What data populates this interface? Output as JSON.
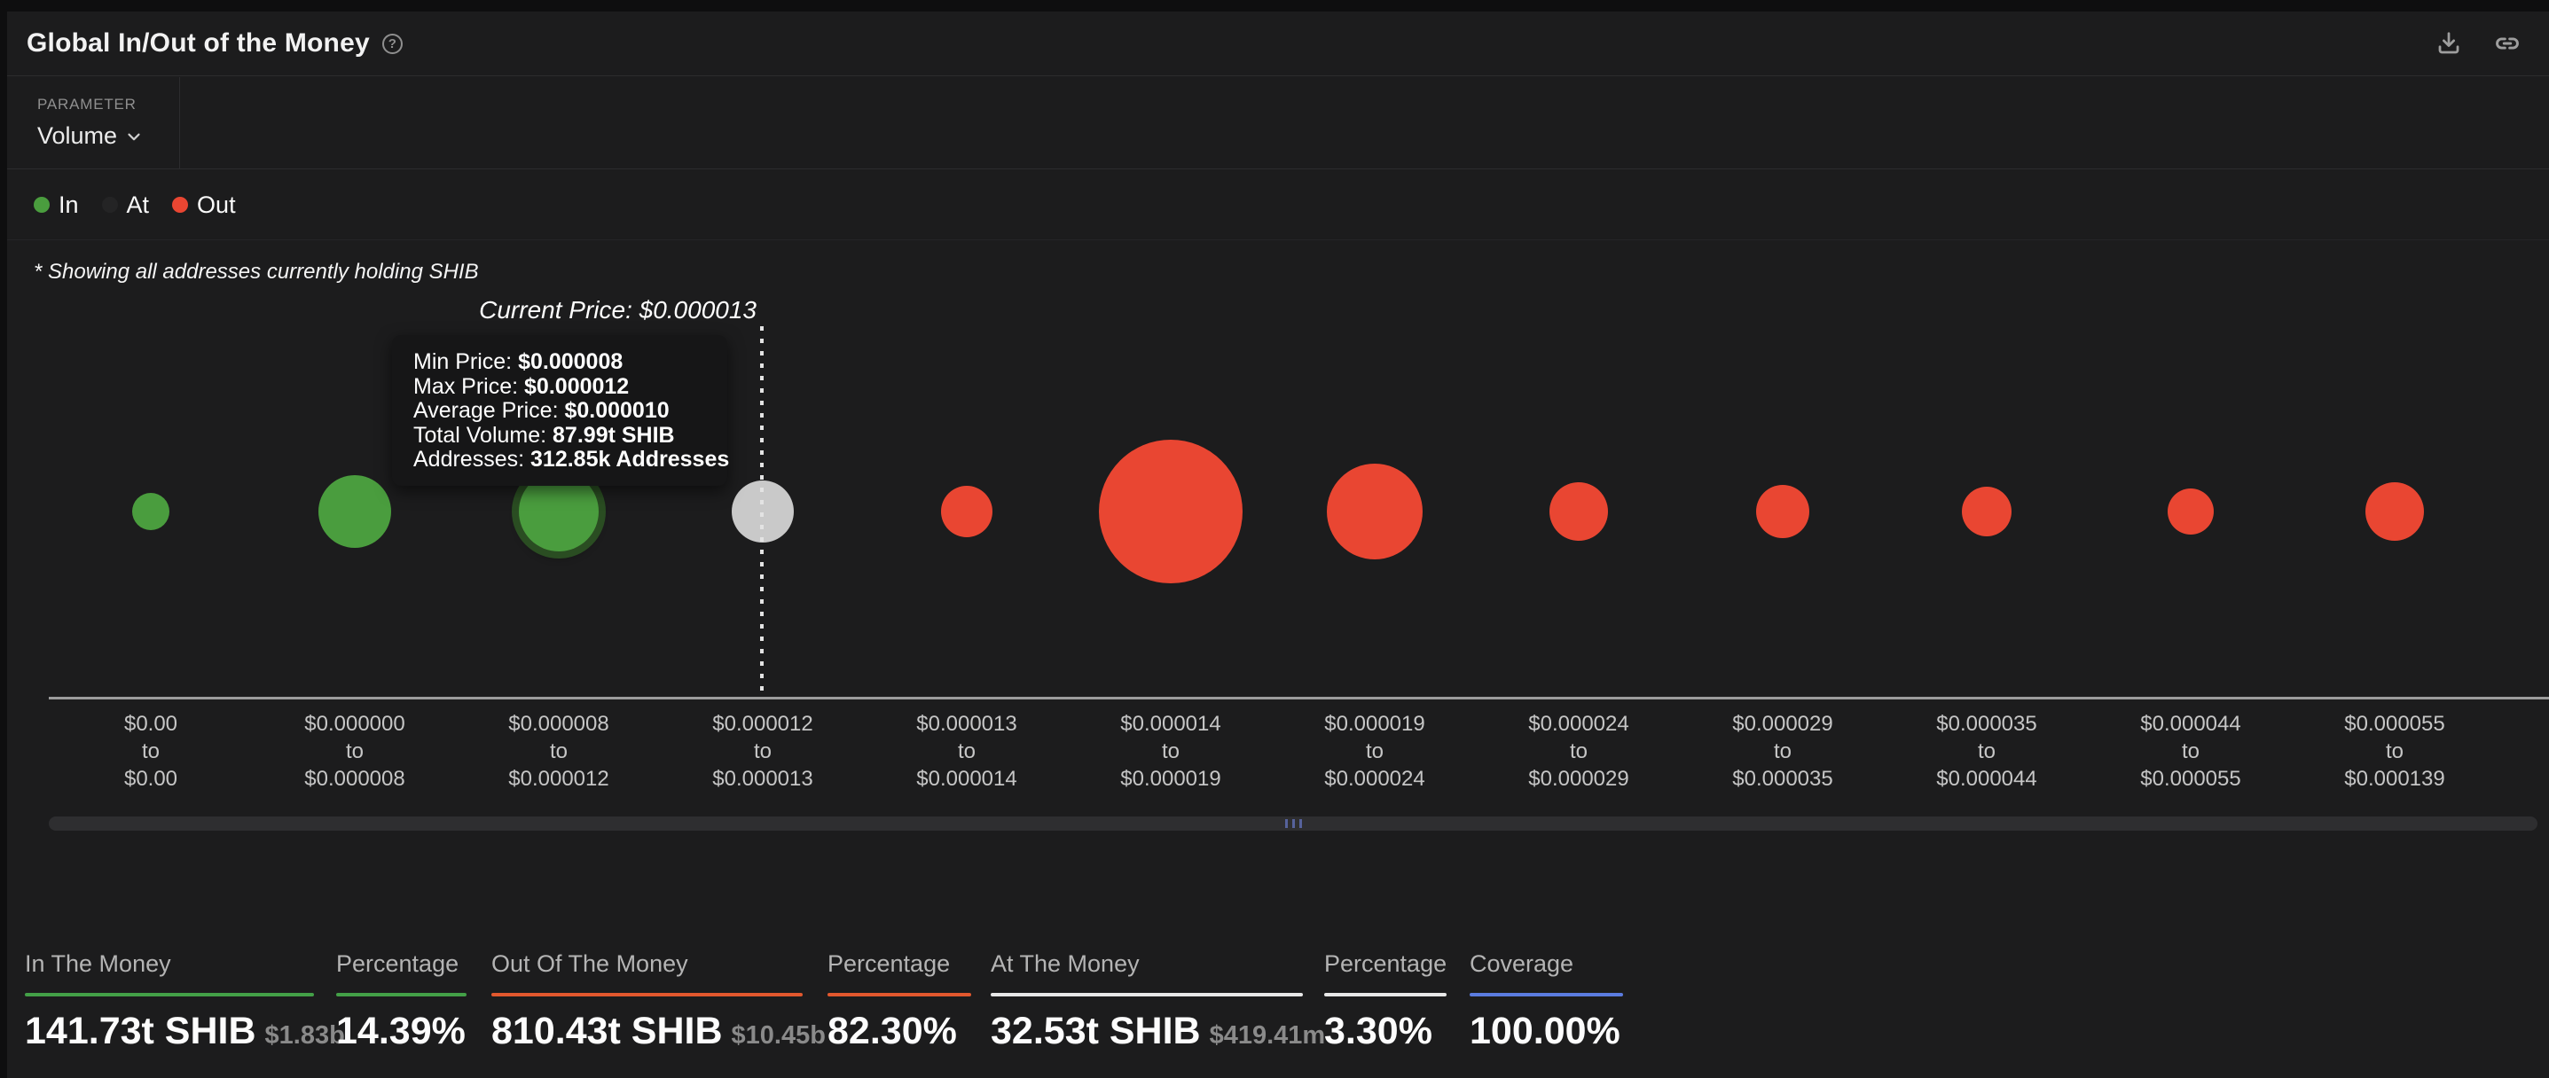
{
  "header": {
    "title": "Global In/Out of the Money"
  },
  "icons": {
    "help": "help-icon",
    "download": "download-icon",
    "link": "link-icon",
    "chevron": "chevron-down-icon",
    "grip": "scrollbar-grip"
  },
  "parameter": {
    "label": "PARAMETER",
    "value": "Volume"
  },
  "legend": {
    "items": [
      {
        "label": "In",
        "dot_color": "#4a9d3e"
      },
      {
        "label": "At",
        "dot_color": "#242425"
      },
      {
        "label": "Out",
        "dot_color": "#e94632"
      }
    ]
  },
  "footnote": "* Showing all addresses currently holding SHIB",
  "chart_data": {
    "type": "bubble",
    "title": "Global In/Out of the Money",
    "parameter": "Volume",
    "asset": "SHIB",
    "legend": [
      "In",
      "At",
      "Out"
    ],
    "current_price": "$0.000013",
    "current_price_label": "Current Price: $0.000013",
    "x_axis_connector": "to",
    "status_colors": {
      "in": "#4a9d3e",
      "at": "#c9c9c9",
      "out": "#e94632"
    },
    "bubbles": [
      {
        "range_from": "$0.00",
        "range_to": "$0.00",
        "status": "in",
        "radius": 21,
        "hovered": false
      },
      {
        "range_from": "$0.000000",
        "range_to": "$0.000008",
        "status": "in",
        "radius": 41,
        "hovered": false
      },
      {
        "range_from": "$0.000008",
        "range_to": "$0.000012",
        "status": "in",
        "radius": 45,
        "hovered": true
      },
      {
        "range_from": "$0.000012",
        "range_to": "$0.000013",
        "status": "at",
        "radius": 35,
        "hovered": false
      },
      {
        "range_from": "$0.000013",
        "range_to": "$0.000014",
        "status": "out",
        "radius": 29,
        "hovered": false
      },
      {
        "range_from": "$0.000014",
        "range_to": "$0.000019",
        "status": "out",
        "radius": 81,
        "hovered": false
      },
      {
        "range_from": "$0.000019",
        "range_to": "$0.000024",
        "status": "out",
        "radius": 54,
        "hovered": false
      },
      {
        "range_from": "$0.000024",
        "range_to": "$0.000029",
        "status": "out",
        "radius": 33,
        "hovered": false
      },
      {
        "range_from": "$0.000029",
        "range_to": "$0.000035",
        "status": "out",
        "radius": 30,
        "hovered": false
      },
      {
        "range_from": "$0.000035",
        "range_to": "$0.000044",
        "status": "out",
        "radius": 28,
        "hovered": false
      },
      {
        "range_from": "$0.000044",
        "range_to": "$0.000055",
        "status": "out",
        "radius": 26,
        "hovered": false
      },
      {
        "range_from": "$0.000055",
        "range_to": "$0.000139",
        "status": "out",
        "radius": 33,
        "hovered": false
      }
    ],
    "tooltip": {
      "rows": [
        {
          "label": "Min Price: ",
          "value": "$0.000008"
        },
        {
          "label": "Max Price: ",
          "value": "$0.000012"
        },
        {
          "label": "Average Price: ",
          "value": "$0.000010"
        },
        {
          "label": "Total Volume: ",
          "value": "87.99t SHIB"
        },
        {
          "label": "Addresses: ",
          "value": "312.85k Addresses"
        }
      ]
    }
  },
  "stats": {
    "columns": [
      {
        "id": "in-the-money",
        "header": "In The Money",
        "value": "141.73t SHIB",
        "sub": "$1.83b",
        "accent": "#43a047"
      },
      {
        "id": "percentage-in",
        "header": "Percentage",
        "value": "14.39%",
        "sub": "",
        "accent": "#43a047"
      },
      {
        "id": "out-of-the-money",
        "header": "Out Of The Money",
        "value": "810.43t SHIB",
        "sub": "$10.45b",
        "accent": "#e2582e"
      },
      {
        "id": "percentage-out",
        "header": "Percentage",
        "value": "82.30%",
        "sub": "",
        "accent": "#e2582e"
      },
      {
        "id": "at-the-money",
        "header": "At The Money",
        "value": "32.53t SHIB",
        "sub": "$419.41m",
        "accent": "#e8e8e8"
      },
      {
        "id": "percentage-at",
        "header": "Percentage",
        "value": "3.30%",
        "sub": "",
        "accent": "#e8e8e8"
      },
      {
        "id": "coverage",
        "header": "Coverage",
        "value": "100.00%",
        "sub": "",
        "accent": "#5b7ce0"
      }
    ]
  }
}
